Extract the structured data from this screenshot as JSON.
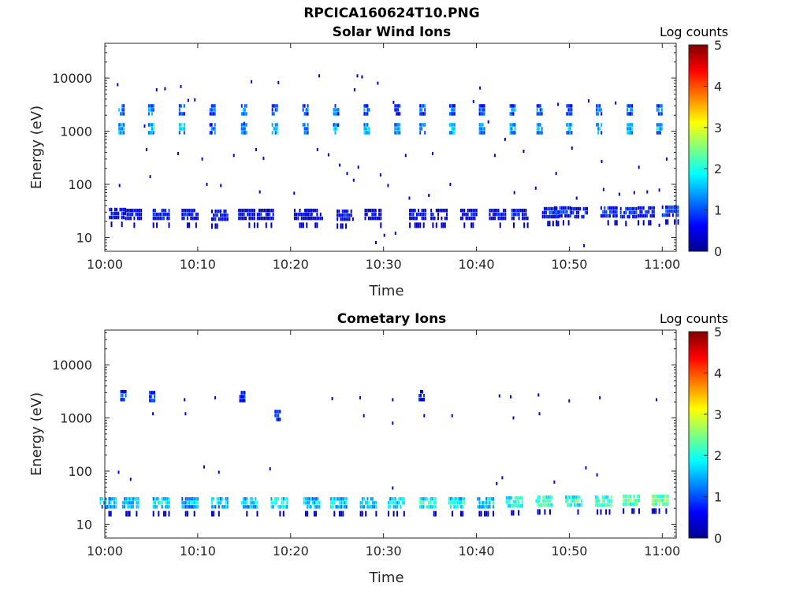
{
  "figure_title": "RPCICA160624T10.PNG",
  "colorbar_label": "Log counts",
  "colors": {
    "axes": "#262626",
    "background": "#ffffff",
    "colormap": [
      "#00008f",
      "#0000ff",
      "#0080ff",
      "#00ffff",
      "#80ff80",
      "#ffff00",
      "#ff8000",
      "#ff0000",
      "#800000"
    ]
  },
  "chart_data": [
    {
      "type": "heatmap",
      "title": "Solar Wind Ions",
      "xlabel": "Time",
      "ylabel": "Energy (eV)",
      "x_ticks": [
        "10:00",
        "10:10",
        "10:20",
        "10:30",
        "10:40",
        "10:50",
        "11:00"
      ],
      "x_range_minutes": [
        0,
        61.5
      ],
      "y_scale": "log",
      "y_range": [
        5.5,
        45000
      ],
      "y_ticks": [
        {
          "value": 10,
          "label": "10"
        },
        {
          "value": 100,
          "label": "100"
        },
        {
          "value": 1000,
          "label": "1000"
        },
        {
          "value": 10000,
          "label": "10000"
        }
      ],
      "colorbar": {
        "label": "Log counts",
        "min": 0,
        "max": 5,
        "ticks": [
          "0",
          "1",
          "2",
          "3",
          "4",
          "5"
        ]
      },
      "bursts": [
        {
          "t": 1.8,
          "e": 2500,
          "c": 1.3
        },
        {
          "t": 1.8,
          "e": 1100,
          "c": 1.6
        },
        {
          "t": 5.0,
          "e": 2500,
          "c": 1.4
        },
        {
          "t": 5.0,
          "e": 1100,
          "c": 1.7
        },
        {
          "t": 8.3,
          "e": 2500,
          "c": 1.2
        },
        {
          "t": 8.3,
          "e": 1100,
          "c": 1.6
        },
        {
          "t": 11.6,
          "e": 2500,
          "c": 1.1
        },
        {
          "t": 11.6,
          "e": 1100,
          "c": 1.3
        },
        {
          "t": 15.0,
          "e": 2500,
          "c": 1.3
        },
        {
          "t": 15.0,
          "e": 1100,
          "c": 1.4
        },
        {
          "t": 18.3,
          "e": 2500,
          "c": 1.1
        },
        {
          "t": 18.3,
          "e": 1100,
          "c": 1.7
        },
        {
          "t": 21.6,
          "e": 2500,
          "c": 1.2
        },
        {
          "t": 21.6,
          "e": 1100,
          "c": 1.4
        },
        {
          "t": 24.9,
          "e": 2500,
          "c": 1.2
        },
        {
          "t": 24.9,
          "e": 1100,
          "c": 1.5
        },
        {
          "t": 28.2,
          "e": 2500,
          "c": 1.1
        },
        {
          "t": 28.2,
          "e": 1100,
          "c": 1.7
        },
        {
          "t": 31.5,
          "e": 2500,
          "c": 1.0
        },
        {
          "t": 31.5,
          "e": 1100,
          "c": 1.5
        },
        {
          "t": 34.2,
          "e": 2500,
          "c": 1.3
        },
        {
          "t": 34.2,
          "e": 1100,
          "c": 1.6
        },
        {
          "t": 37.4,
          "e": 2500,
          "c": 1.0
        },
        {
          "t": 37.4,
          "e": 1100,
          "c": 1.8
        },
        {
          "t": 40.6,
          "e": 2500,
          "c": 1.1
        },
        {
          "t": 40.6,
          "e": 1100,
          "c": 1.4
        },
        {
          "t": 43.9,
          "e": 2500,
          "c": 1.2
        },
        {
          "t": 43.9,
          "e": 1100,
          "c": 1.5
        },
        {
          "t": 46.8,
          "e": 2500,
          "c": 1.1
        },
        {
          "t": 46.8,
          "e": 1100,
          "c": 1.5
        },
        {
          "t": 50.0,
          "e": 2500,
          "c": 1.2
        },
        {
          "t": 50.0,
          "e": 1100,
          "c": 1.6
        },
        {
          "t": 53.2,
          "e": 2500,
          "c": 1.3
        },
        {
          "t": 53.2,
          "e": 1100,
          "c": 1.5
        },
        {
          "t": 56.5,
          "e": 2500,
          "c": 1.1
        },
        {
          "t": 56.5,
          "e": 1100,
          "c": 1.6
        },
        {
          "t": 59.7,
          "e": 2500,
          "c": 1.2
        },
        {
          "t": 59.7,
          "e": 1100,
          "c": 1.5
        },
        {
          "t": 1.3,
          "e": 28,
          "c": 0.7
        },
        {
          "t": 3.0,
          "e": 27,
          "c": 0.6
        },
        {
          "t": 6.0,
          "e": 27,
          "c": 0.8
        },
        {
          "t": 9.1,
          "e": 27,
          "c": 0.6
        },
        {
          "t": 12.3,
          "e": 26,
          "c": 0.7
        },
        {
          "t": 15.2,
          "e": 27,
          "c": 0.6
        },
        {
          "t": 17.2,
          "e": 27,
          "c": 0.5
        },
        {
          "t": 21.2,
          "e": 27,
          "c": 0.5
        },
        {
          "t": 22.5,
          "e": 27,
          "c": 0.6
        },
        {
          "t": 25.8,
          "e": 26,
          "c": 0.6
        },
        {
          "t": 28.8,
          "e": 27,
          "c": 0.5
        },
        {
          "t": 33.6,
          "e": 27,
          "c": 0.6
        },
        {
          "t": 35.9,
          "e": 27,
          "c": 0.5
        },
        {
          "t": 39.1,
          "e": 27,
          "c": 0.6
        },
        {
          "t": 42.2,
          "e": 27,
          "c": 0.6
        },
        {
          "t": 44.6,
          "e": 27,
          "c": 0.7
        },
        {
          "t": 47.9,
          "e": 29,
          "c": 0.8
        },
        {
          "t": 49.2,
          "e": 30,
          "c": 0.9
        },
        {
          "t": 51.0,
          "e": 29,
          "c": 0.7
        },
        {
          "t": 54.2,
          "e": 30,
          "c": 0.9
        },
        {
          "t": 56.3,
          "e": 29,
          "c": 0.8
        },
        {
          "t": 58.2,
          "e": 30,
          "c": 0.8
        },
        {
          "t": 60.8,
          "e": 31,
          "c": 1.0
        }
      ],
      "specks": [
        {
          "t": 1.3,
          "e": 7500
        },
        {
          "t": 5.5,
          "e": 6000
        },
        {
          "t": 6.4,
          "e": 6300
        },
        {
          "t": 8.1,
          "e": 6900
        },
        {
          "t": 8.9,
          "e": 3800
        },
        {
          "t": 9.6,
          "e": 3900
        },
        {
          "t": 15.7,
          "e": 8500
        },
        {
          "t": 18.6,
          "e": 8200
        },
        {
          "t": 23.0,
          "e": 11000
        },
        {
          "t": 26.8,
          "e": 6000
        },
        {
          "t": 27.1,
          "e": 11000
        },
        {
          "t": 27.6,
          "e": 10500
        },
        {
          "t": 29.3,
          "e": 8000
        },
        {
          "t": 31.0,
          "e": 3500
        },
        {
          "t": 40.3,
          "e": 6500
        },
        {
          "t": 39.6,
          "e": 3600
        },
        {
          "t": 41.2,
          "e": 1500
        },
        {
          "t": 48.7,
          "e": 3200
        },
        {
          "t": 52.0,
          "e": 3700
        },
        {
          "t": 54.9,
          "e": 3400
        },
        {
          "t": 4.2,
          "e": 1250
        },
        {
          "t": 14.9,
          "e": 1400
        },
        {
          "t": 25.0,
          "e": 1300
        },
        {
          "t": 43.0,
          "e": 700
        },
        {
          "t": 4.4,
          "e": 450
        },
        {
          "t": 7.8,
          "e": 380
        },
        {
          "t": 10.4,
          "e": 300
        },
        {
          "t": 13.8,
          "e": 350
        },
        {
          "t": 16.2,
          "e": 450
        },
        {
          "t": 17.0,
          "e": 310
        },
        {
          "t": 22.8,
          "e": 450
        },
        {
          "t": 24.0,
          "e": 360
        },
        {
          "t": 25.2,
          "e": 230
        },
        {
          "t": 26.0,
          "e": 160
        },
        {
          "t": 26.7,
          "e": 120
        },
        {
          "t": 27.2,
          "e": 210
        },
        {
          "t": 29.6,
          "e": 150
        },
        {
          "t": 30.4,
          "e": 95
        },
        {
          "t": 32.3,
          "e": 350
        },
        {
          "t": 35.2,
          "e": 380
        },
        {
          "t": 37.1,
          "e": 100
        },
        {
          "t": 41.9,
          "e": 350
        },
        {
          "t": 45.0,
          "e": 420
        },
        {
          "t": 48.5,
          "e": 160
        },
        {
          "t": 50.2,
          "e": 480
        },
        {
          "t": 53.4,
          "e": 270
        },
        {
          "t": 57.4,
          "e": 210
        },
        {
          "t": 60.4,
          "e": 300
        },
        {
          "t": 1.5,
          "e": 95
        },
        {
          "t": 4.8,
          "e": 140
        },
        {
          "t": 10.9,
          "e": 100
        },
        {
          "t": 12.4,
          "e": 95
        },
        {
          "t": 16.6,
          "e": 72
        },
        {
          "t": 20.3,
          "e": 68
        },
        {
          "t": 32.7,
          "e": 55
        },
        {
          "t": 34.8,
          "e": 62
        },
        {
          "t": 44.0,
          "e": 70
        },
        {
          "t": 46.3,
          "e": 85
        },
        {
          "t": 50.7,
          "e": 55
        },
        {
          "t": 53.6,
          "e": 80
        },
        {
          "t": 55.3,
          "e": 65
        },
        {
          "t": 56.9,
          "e": 70
        },
        {
          "t": 58.3,
          "e": 72
        },
        {
          "t": 59.6,
          "e": 78
        },
        {
          "t": 29.1,
          "e": 8
        },
        {
          "t": 30.0,
          "e": 11
        },
        {
          "t": 31.2,
          "e": 12
        },
        {
          "t": 51.5,
          "e": 7
        },
        {
          "t": 59.6,
          "e": 17
        }
      ]
    },
    {
      "type": "heatmap",
      "title": "Cometary Ions",
      "xlabel": "Time",
      "ylabel": "Energy (eV)",
      "x_ticks": [
        "10:00",
        "10:10",
        "10:20",
        "10:30",
        "10:40",
        "10:50",
        "11:00"
      ],
      "x_range_minutes": [
        0,
        61.5
      ],
      "y_scale": "log",
      "y_range": [
        5.5,
        45000
      ],
      "y_ticks": [
        {
          "value": 10,
          "label": "10"
        },
        {
          "value": 100,
          "label": "100"
        },
        {
          "value": 1000,
          "label": "1000"
        },
        {
          "value": 10000,
          "label": "10000"
        }
      ],
      "colorbar": {
        "label": "Log counts",
        "min": 0,
        "max": 5,
        "ticks": [
          "0",
          "1",
          "2",
          "3",
          "4",
          "5"
        ]
      },
      "bursts": [
        {
          "t": 0.3,
          "e": 25,
          "c": 1.6
        },
        {
          "t": 2.7,
          "e": 25,
          "c": 1.7
        },
        {
          "t": 6.0,
          "e": 25,
          "c": 1.8
        },
        {
          "t": 9.1,
          "e": 25,
          "c": 1.6
        },
        {
          "t": 12.3,
          "e": 25,
          "c": 1.7
        },
        {
          "t": 15.5,
          "e": 25,
          "c": 1.8
        },
        {
          "t": 18.7,
          "e": 25,
          "c": 1.9
        },
        {
          "t": 22.2,
          "e": 25,
          "c": 1.7
        },
        {
          "t": 25.1,
          "e": 25,
          "c": 1.8
        },
        {
          "t": 28.3,
          "e": 25,
          "c": 1.9
        },
        {
          "t": 31.3,
          "e": 25,
          "c": 1.8
        },
        {
          "t": 34.7,
          "e": 25,
          "c": 2.0
        },
        {
          "t": 37.8,
          "e": 25,
          "c": 1.9
        },
        {
          "t": 40.9,
          "e": 25,
          "c": 1.8
        },
        {
          "t": 44.0,
          "e": 26,
          "c": 2.1
        },
        {
          "t": 47.2,
          "e": 27,
          "c": 2.3
        },
        {
          "t": 50.4,
          "e": 27,
          "c": 2.2
        },
        {
          "t": 53.6,
          "e": 27,
          "c": 2.3
        },
        {
          "t": 56.6,
          "e": 28,
          "c": 2.4
        },
        {
          "t": 59.7,
          "e": 28,
          "c": 2.5
        },
        {
          "t": 2.0,
          "e": 2600,
          "c": 0.9
        },
        {
          "t": 5.1,
          "e": 2500,
          "c": 0.9
        },
        {
          "t": 14.8,
          "e": 2500,
          "c": 0.9
        },
        {
          "t": 18.6,
          "e": 1100,
          "c": 0.9
        },
        {
          "t": 34.1,
          "e": 2600,
          "c": 0.9
        }
      ],
      "specks": [
        {
          "t": 8.5,
          "e": 2200
        },
        {
          "t": 11.8,
          "e": 2400
        },
        {
          "t": 24.4,
          "e": 2300
        },
        {
          "t": 27.4,
          "e": 2400
        },
        {
          "t": 30.9,
          "e": 2200
        },
        {
          "t": 42.4,
          "e": 2600
        },
        {
          "t": 43.6,
          "e": 2500
        },
        {
          "t": 46.6,
          "e": 2700
        },
        {
          "t": 49.9,
          "e": 2100
        },
        {
          "t": 53.2,
          "e": 2400
        },
        {
          "t": 59.3,
          "e": 2200
        },
        {
          "t": 5.1,
          "e": 1200
        },
        {
          "t": 8.6,
          "e": 1200
        },
        {
          "t": 27.8,
          "e": 1100
        },
        {
          "t": 30.9,
          "e": 800
        },
        {
          "t": 34.3,
          "e": 1100
        },
        {
          "t": 37.3,
          "e": 1100
        },
        {
          "t": 43.9,
          "e": 1000
        },
        {
          "t": 46.7,
          "e": 1200
        },
        {
          "t": 1.4,
          "e": 95
        },
        {
          "t": 2.7,
          "e": 70
        },
        {
          "t": 10.6,
          "e": 120
        },
        {
          "t": 12.2,
          "e": 95
        },
        {
          "t": 17.7,
          "e": 110
        },
        {
          "t": 30.9,
          "e": 48
        },
        {
          "t": 42.7,
          "e": 75
        },
        {
          "t": 42.1,
          "e": 58
        },
        {
          "t": 48.3,
          "e": 62
        },
        {
          "t": 51.7,
          "e": 115
        },
        {
          "t": 52.9,
          "e": 85
        }
      ]
    }
  ]
}
